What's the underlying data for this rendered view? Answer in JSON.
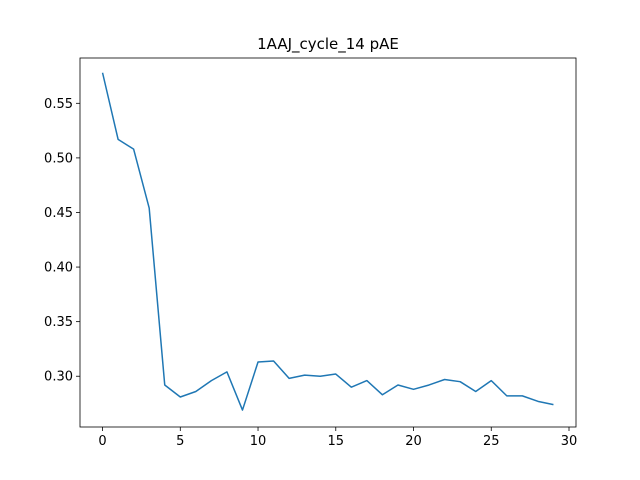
{
  "chart_data": {
    "type": "line",
    "title": "1AAJ_cycle_14 pAE",
    "xlabel": "",
    "ylabel": "",
    "xlim": [
      -1.45,
      30.45
    ],
    "ylim": [
      0.2535,
      0.5915
    ],
    "x_ticks": [
      0,
      5,
      10,
      15,
      20,
      25,
      30
    ],
    "y_ticks": [
      0.3,
      0.35,
      0.4,
      0.45,
      0.5,
      0.55
    ],
    "grid": false,
    "line_color": "#1f77b4",
    "series": [
      {
        "x": [
          0,
          1,
          2,
          3,
          4,
          5,
          6,
          7,
          8,
          9,
          10,
          11,
          12,
          13,
          14,
          15,
          16,
          17,
          18,
          19,
          20,
          21,
          22,
          23,
          24,
          25,
          26,
          27,
          28,
          29
        ],
        "values": [
          0.578,
          0.517,
          0.508,
          0.454,
          0.292,
          0.281,
          0.286,
          0.296,
          0.304,
          0.269,
          0.313,
          0.314,
          0.298,
          0.301,
          0.3,
          0.302,
          0.29,
          0.296,
          0.283,
          0.292,
          0.288,
          0.292,
          0.297,
          0.295,
          0.286,
          0.296,
          0.282,
          0.282,
          0.277,
          0.274
        ]
      }
    ]
  }
}
